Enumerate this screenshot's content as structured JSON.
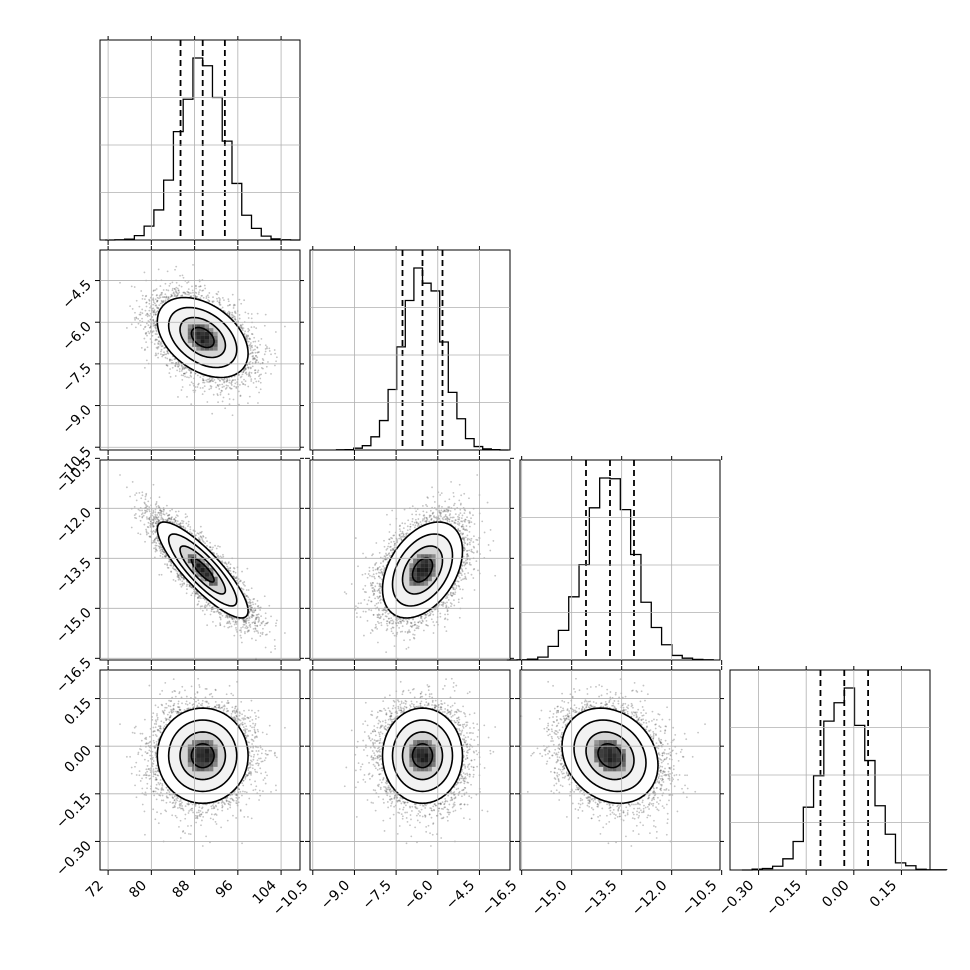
{
  "chart_data": {
    "type": "corner",
    "parameters": [
      {
        "index": 0,
        "mean": 89.5,
        "sd": 4.2,
        "range": [
          70.5,
          107.5
        ],
        "ticks": [
          72,
          80,
          88,
          96,
          104
        ],
        "tick_labels": [
          "72",
          "80",
          "88",
          "96",
          "104"
        ],
        "quantiles": [
          85.4,
          89.5,
          93.6
        ]
      },
      {
        "index": 1,
        "mean": -6.55,
        "sd": 0.72,
        "range": [
          -10.6,
          -3.4
        ],
        "ticks": [
          -10.5,
          -9.0,
          -7.5,
          -6.0,
          -4.5
        ],
        "tick_labels": [
          "−10.5",
          "−9.0",
          "−7.5",
          "−6.0",
          "−4.5"
        ],
        "quantiles": [
          -7.27,
          -6.55,
          -5.83
        ]
      },
      {
        "index": 2,
        "mean": -13.85,
        "sd": 0.72,
        "range": [
          -16.55,
          -10.55
        ],
        "ticks": [
          -16.5,
          -15.0,
          -13.5,
          -12.0,
          -10.5
        ],
        "tick_labels": [
          "−16.5",
          "−15.0",
          "−13.5",
          "−12.0",
          "−10.5"
        ],
        "quantiles": [
          -14.57,
          -13.85,
          -13.13
        ]
      },
      {
        "index": 3,
        "mean": -0.03,
        "sd": 0.075,
        "range": [
          -0.39,
          0.24
        ],
        "ticks": [
          -0.3,
          -0.15,
          0.0,
          0.15
        ],
        "tick_labels": [
          "−0.30",
          "−0.15",
          "0.00",
          "0.15"
        ],
        "quantiles": [
          -0.105,
          -0.03,
          0.045
        ]
      }
    ],
    "correlations": [
      [
        1.0,
        -0.4,
        -0.85,
        0.0
      ],
      [
        -0.4,
        1.0,
        0.4,
        0.0
      ],
      [
        -0.85,
        0.4,
        1.0,
        -0.2
      ],
      [
        0.0,
        0.0,
        -0.2,
        1.0
      ]
    ],
    "histogram_bins": 20,
    "contour_levels_sigma": [
      0.5,
      1.0,
      1.5,
      2.0
    ],
    "grid": true,
    "colors": {
      "ink": "#000000",
      "grid": "#b0b0b0",
      "points": "#555555"
    }
  }
}
